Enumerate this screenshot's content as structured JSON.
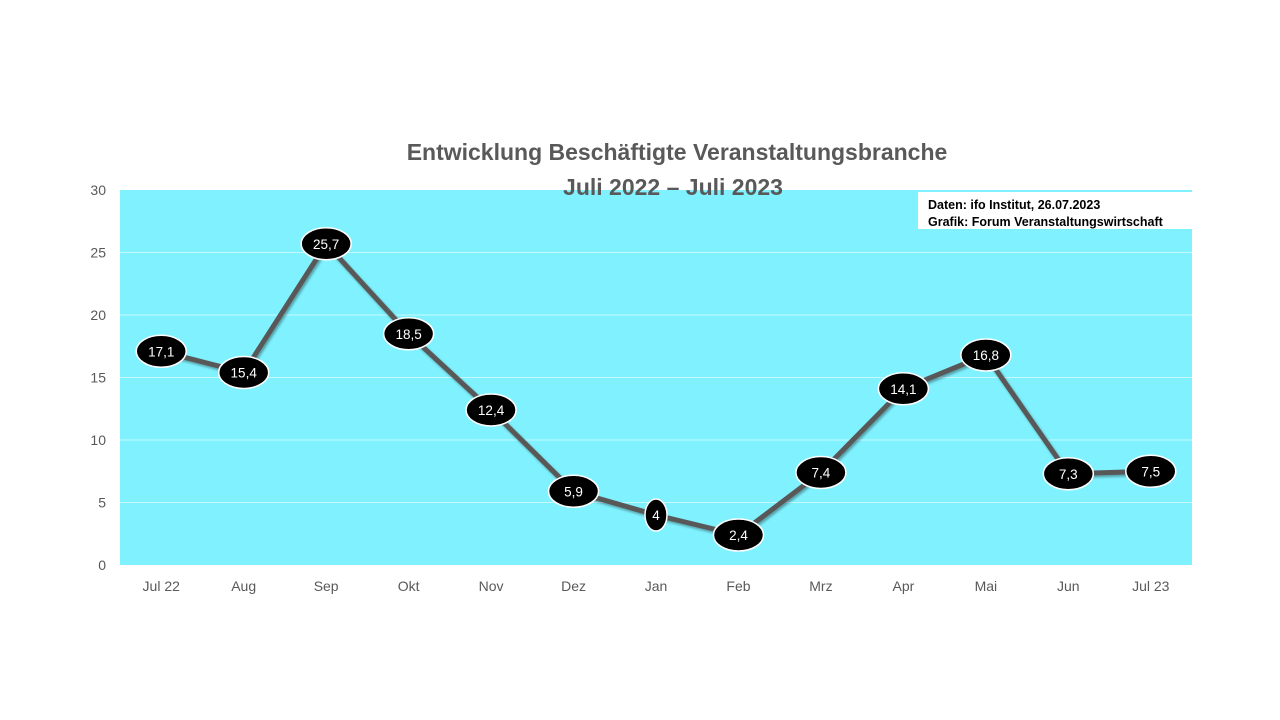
{
  "colors": {
    "plot_background": "#80F2FF",
    "line": "#595959",
    "label_fill": "#000000",
    "label_border": "#ffffff",
    "label_text": "#ffffff",
    "axis_text": "#595959",
    "title_text": "#595959"
  },
  "source_box": {
    "line1": "Daten: ifo Institut, 26.07.2023",
    "line2": "Grafik: Forum Veranstaltungswirtschaft"
  },
  "chart_data": {
    "type": "line",
    "title": "Entwicklung Beschäftigte Veranstaltungsbranche",
    "subtitle": "Juli 2022 – Juli 2023",
    "xlabel": "",
    "ylabel": "",
    "ylim": [
      0,
      30
    ],
    "yticks": [
      "0",
      "5",
      "10",
      "15",
      "20",
      "25",
      "30"
    ],
    "grid": true,
    "legend": "none",
    "categories": [
      "Jul 22",
      "Aug",
      "Sep",
      "Okt",
      "Nov",
      "Dez",
      "Jan",
      "Feb",
      "Mrz",
      "Apr",
      "Mai",
      "Jun",
      "Jul 23"
    ],
    "series": [
      {
        "values": [
          17.1,
          15.4,
          25.7,
          18.5,
          12.4,
          5.9,
          4,
          2.4,
          7.4,
          14.1,
          16.8,
          7.3,
          7.5
        ],
        "data_labels": [
          "17,1",
          "15,4",
          "25,7",
          "18,5",
          "12,4",
          "5,9",
          "4",
          "2,4",
          "7,4",
          "14,1",
          "16,8",
          "7,3",
          "7,5"
        ]
      }
    ]
  }
}
